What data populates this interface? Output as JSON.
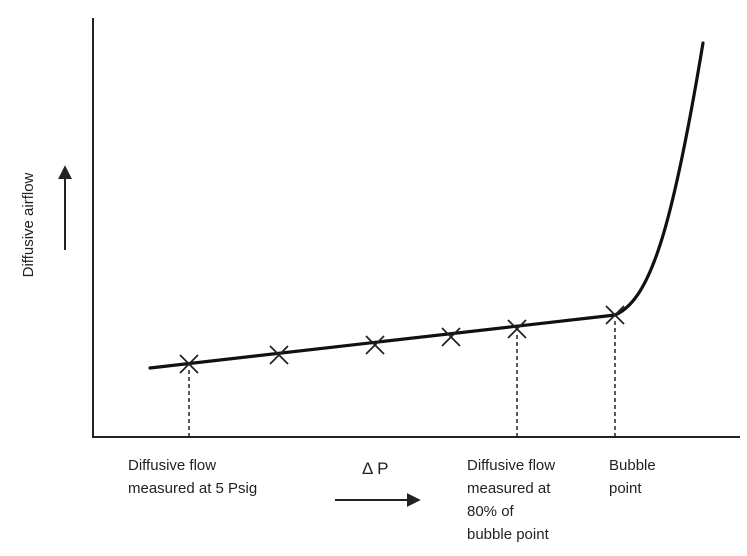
{
  "y_axis_label": "Diffusive airflow",
  "x_axis_label": "Δ P",
  "annotations": [
    {
      "lines": [
        "Diffusive flow",
        "measured at 5 Psig"
      ]
    },
    {
      "lines": [
        "Diffusive flow",
        "measured at",
        "80% of",
        "bubble point"
      ]
    },
    {
      "lines": [
        "Bubble",
        "point"
      ]
    }
  ]
}
